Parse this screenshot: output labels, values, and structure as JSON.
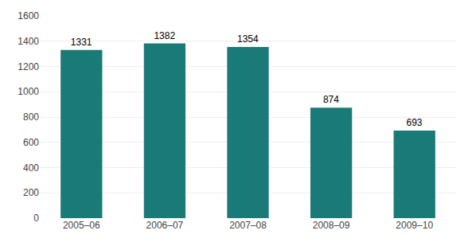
{
  "chart_data": {
    "type": "bar",
    "categories": [
      "2005–06",
      "2006–07",
      "2007–08",
      "2008–09",
      "2009–10"
    ],
    "values": [
      1331,
      1382,
      1354,
      874,
      693
    ],
    "color": "#1a7a78",
    "ylim": [
      0,
      1600
    ],
    "yticks": [
      0,
      200,
      400,
      600,
      800,
      1000,
      1200,
      1400,
      1600
    ],
    "grid": true,
    "data_labels": true
  }
}
